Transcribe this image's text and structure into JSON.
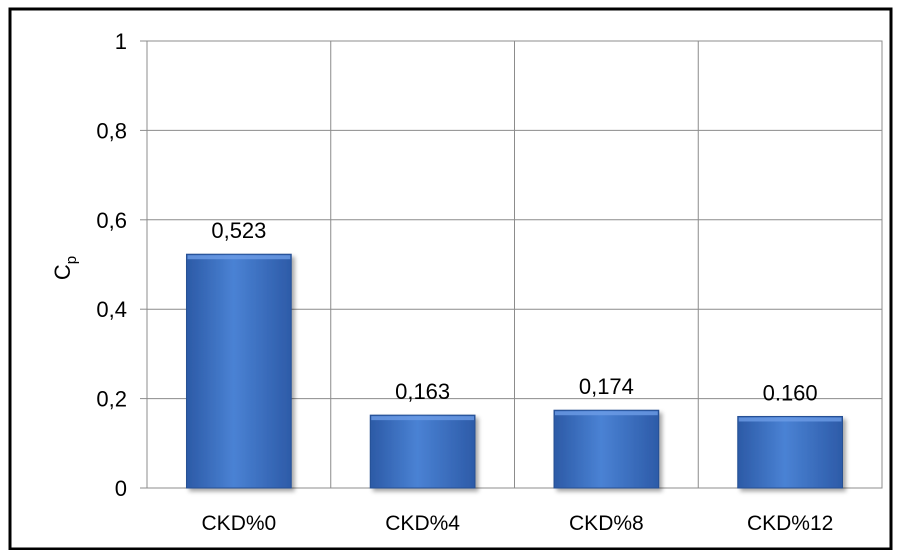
{
  "chart_data": {
    "type": "bar",
    "categories": [
      "CKD%0",
      "CKD%4",
      "CKD%8",
      "CKD%12"
    ],
    "values": [
      0.523,
      0.163,
      0.174,
      0.16
    ],
    "data_labels": [
      "0,523",
      "0,163",
      "0,174",
      "0.160"
    ],
    "title": "",
    "xlabel": "",
    "ylabel_base": "C",
    "ylabel_sub": "p",
    "ylim": [
      0,
      1
    ],
    "yticks": [
      0,
      0.2,
      0.4,
      0.6,
      0.8,
      1
    ],
    "ytick_labels": [
      "0",
      "0,2",
      "0,4",
      "0,6",
      "0,8",
      "1"
    ],
    "grid": true,
    "legend": "none",
    "bar_color": "#3f73c4",
    "bar_edge_color": "#264f93"
  }
}
